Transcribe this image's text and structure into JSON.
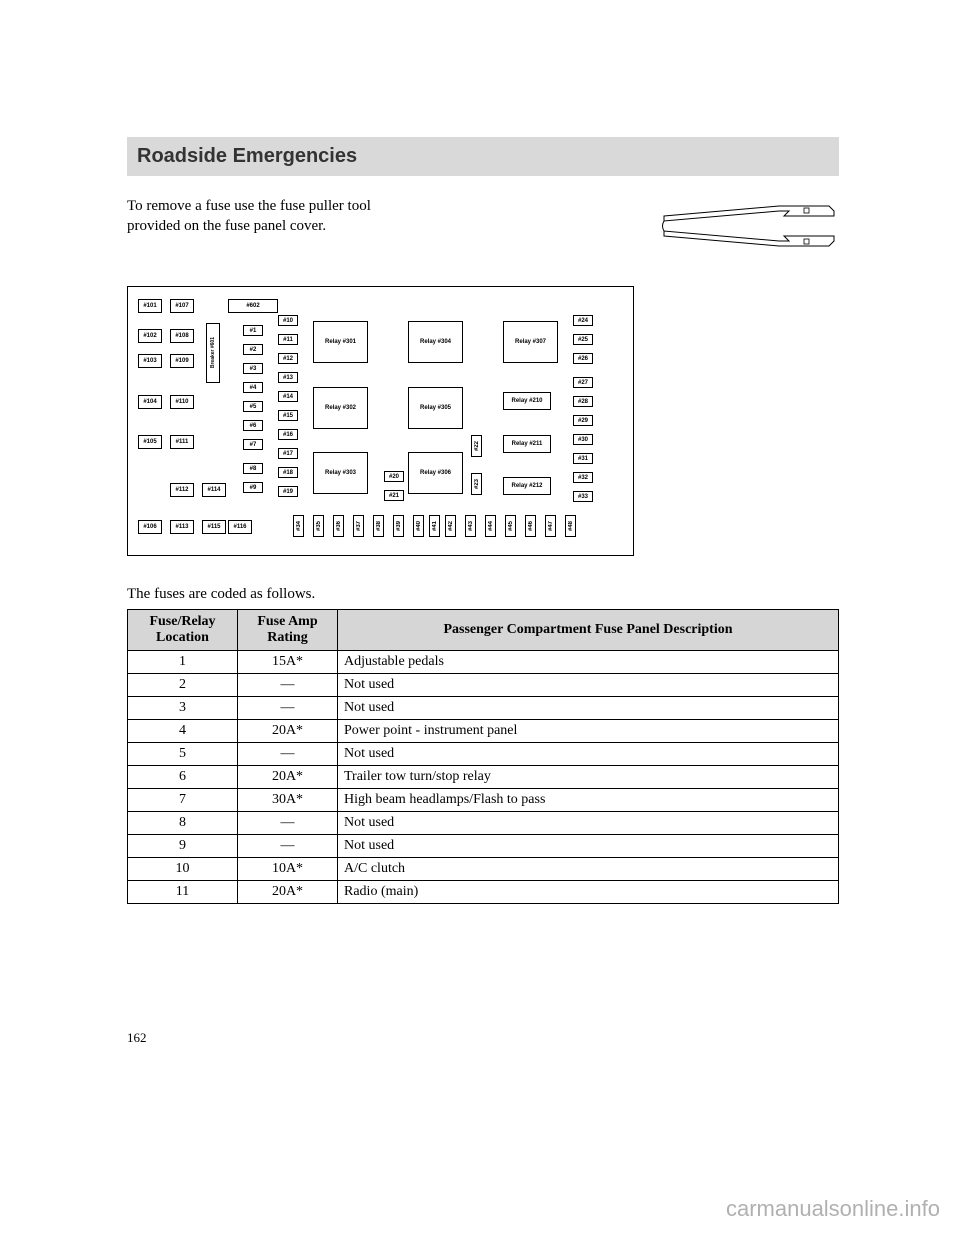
{
  "header": {
    "title": "Roadside Emergencies"
  },
  "intro": "To remove a fuse use the fuse puller tool provided on the fuse panel cover.",
  "caption": "The fuses are coded as follows.",
  "table": {
    "columns": [
      "Fuse/Relay Location",
      "Fuse Amp Rating",
      "Passenger Compartment Fuse Panel Description"
    ],
    "rows": [
      [
        "1",
        "15A*",
        "Adjustable pedals"
      ],
      [
        "2",
        "—",
        "Not used"
      ],
      [
        "3",
        "—",
        "Not used"
      ],
      [
        "4",
        "20A*",
        "Power point - instrument panel"
      ],
      [
        "5",
        "—",
        "Not used"
      ],
      [
        "6",
        "20A*",
        "Trailer tow turn/stop relay"
      ],
      [
        "7",
        "30A*",
        "High beam headlamps/Flash to pass"
      ],
      [
        "8",
        "—",
        "Not used"
      ],
      [
        "9",
        "—",
        "Not used"
      ],
      [
        "10",
        "10A*",
        "A/C clutch"
      ],
      [
        "11",
        "20A*",
        "Radio (main)"
      ]
    ],
    "col_align": [
      "center",
      "center",
      "left"
    ],
    "header_bg": "#d6d6d6"
  },
  "diagram": {
    "col1": [
      "#101",
      "#102",
      "#103",
      "#104",
      "#105",
      "#106"
    ],
    "col2": [
      "#107",
      "#108",
      "#109",
      "#110",
      "#111"
    ],
    "col2_bottom": [
      "#112",
      "#113"
    ],
    "col3_bottom": [
      "#114",
      "#115",
      "#116"
    ],
    "breaker": "Breaker #601",
    "top_wide": "#602",
    "col4": [
      "#1",
      "#2",
      "#3",
      "#4",
      "#5",
      "#6",
      "#7",
      "#8",
      "#9"
    ],
    "col5": [
      "#10",
      "#11",
      "#12",
      "#13",
      "#14",
      "#15",
      "#16",
      "#17",
      "#18",
      "#19"
    ],
    "relays_left": [
      "Relay #301",
      "Relay #302",
      "Relay #303"
    ],
    "mid_small": [
      "#20",
      "#21"
    ],
    "relays_mid": [
      "Relay #304",
      "Relay #305",
      "Relay #306"
    ],
    "mid_vert": [
      "#22",
      "#23"
    ],
    "relays_right_big": "Relay #307",
    "relays_right_small": [
      "Relay #210",
      "Relay #211",
      "Relay #212"
    ],
    "right_col": [
      "#24",
      "#25",
      "#26",
      "#27",
      "#28",
      "#29",
      "#30",
      "#31",
      "#32",
      "#33"
    ],
    "bottom_row": [
      "#34",
      "#35",
      "#36",
      "#37",
      "#38",
      "#39",
      "#40",
      "#41",
      "#42",
      "#43",
      "#44",
      "#45",
      "#46",
      "#47",
      "#48"
    ]
  },
  "page_number": "162",
  "watermark": "carmanualsonline.info"
}
